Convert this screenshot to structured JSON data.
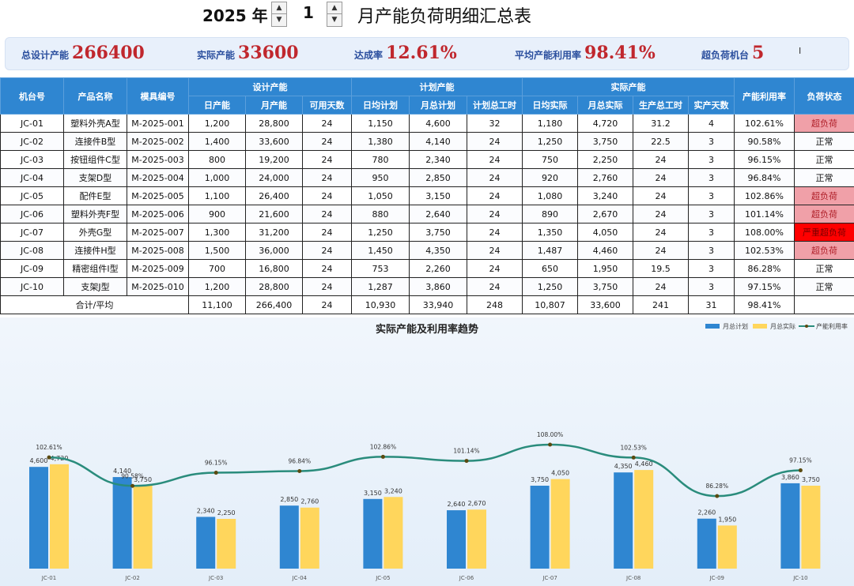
{
  "header": {
    "year": "2025 年",
    "month": "1",
    "title": "月产能负荷明细汇总表",
    "spin_up": "▲",
    "spin_down": "▼"
  },
  "kpis": [
    {
      "label": "总设计产能",
      "value": "266400"
    },
    {
      "label": "实际产能",
      "value": "33600"
    },
    {
      "label": "达成率",
      "value": "12.61%"
    },
    {
      "label": "平均产能利用率",
      "value": "98.41%"
    },
    {
      "label": "超负荷机台",
      "value": "5"
    }
  ],
  "cursor_glyph": "I",
  "table": {
    "group_headers": {
      "design": "设计产能",
      "plan": "计划产能",
      "actual": "实际产能"
    },
    "col_headers": {
      "machine": "机台号",
      "product": "产品名称",
      "mold": "模具编号",
      "day_cap": "日产能",
      "month_cap": "月产能",
      "days": "可用天数",
      "daily_plan": "日均计划",
      "month_plan": "月总计划",
      "plan_hours": "计划总工时",
      "daily_actual": "日均实际",
      "month_actual": "月总实际",
      "prod_hours": "生产总工时",
      "actual_days": "实产天数",
      "util": "产能利用率",
      "status": "负荷状态"
    },
    "rows": [
      [
        "JC-01",
        "塑料外壳A型",
        "M-2025-001",
        "1,200",
        "28,800",
        "24",
        "1,150",
        "4,600",
        "32",
        "1,180",
        "4,720",
        "31.2",
        "4",
        "102.61%",
        "超负荷"
      ],
      [
        "JC-02",
        "连接件B型",
        "M-2025-002",
        "1,400",
        "33,600",
        "24",
        "1,380",
        "4,140",
        "24",
        "1,250",
        "3,750",
        "22.5",
        "3",
        "90.58%",
        "正常"
      ],
      [
        "JC-03",
        "按钮组件C型",
        "M-2025-003",
        "800",
        "19,200",
        "24",
        "780",
        "2,340",
        "24",
        "750",
        "2,250",
        "24",
        "3",
        "96.15%",
        "正常"
      ],
      [
        "JC-04",
        "支架D型",
        "M-2025-004",
        "1,000",
        "24,000",
        "24",
        "950",
        "2,850",
        "24",
        "920",
        "2,760",
        "24",
        "3",
        "96.84%",
        "正常"
      ],
      [
        "JC-05",
        "配件E型",
        "M-2025-005",
        "1,100",
        "26,400",
        "24",
        "1,050",
        "3,150",
        "24",
        "1,080",
        "3,240",
        "24",
        "3",
        "102.86%",
        "超负荷"
      ],
      [
        "JC-06",
        "塑料外壳F型",
        "M-2025-006",
        "900",
        "21,600",
        "24",
        "880",
        "2,640",
        "24",
        "890",
        "2,670",
        "24",
        "3",
        "101.14%",
        "超负荷"
      ],
      [
        "JC-07",
        "外壳G型",
        "M-2025-007",
        "1,300",
        "31,200",
        "24",
        "1,250",
        "3,750",
        "24",
        "1,350",
        "4,050",
        "24",
        "3",
        "108.00%",
        "严重超负荷"
      ],
      [
        "JC-08",
        "连接件H型",
        "M-2025-008",
        "1,500",
        "36,000",
        "24",
        "1,450",
        "4,350",
        "24",
        "1,487",
        "4,460",
        "24",
        "3",
        "102.53%",
        "超负荷"
      ],
      [
        "JC-09",
        "精密组件I型",
        "M-2025-009",
        "700",
        "16,800",
        "24",
        "753",
        "2,260",
        "24",
        "650",
        "1,950",
        "19.5",
        "3",
        "86.28%",
        "正常"
      ],
      [
        "JC-10",
        "支架J型",
        "M-2025-010",
        "1,200",
        "28,800",
        "24",
        "1,287",
        "3,860",
        "24",
        "1,250",
        "3,750",
        "24",
        "3",
        "97.15%",
        "正常"
      ]
    ],
    "total": {
      "label": "合计/平均",
      "values": [
        "11,100",
        "266,400",
        "24",
        "10,930",
        "33,940",
        "248",
        "10,807",
        "33,600",
        "241",
        "31",
        "98.41%"
      ]
    }
  },
  "colors": {
    "plan": "#2f86d1",
    "actual": "#ffd65c",
    "line": "#2a8c7c",
    "marker": "#5a4a10"
  },
  "chart_data": {
    "type": "bar",
    "title": "实际产能及利用率趋势",
    "categories": [
      "JC-01",
      "JC-02",
      "JC-03",
      "JC-04",
      "JC-05",
      "JC-06",
      "JC-07",
      "JC-08",
      "JC-09",
      "JC-10"
    ],
    "series": [
      {
        "name": "月总计划",
        "values": [
          4600,
          4140,
          2340,
          2850,
          3150,
          2640,
          3750,
          4350,
          2260,
          3860
        ],
        "labels": [
          "4,600",
          "4,140",
          "2,340",
          "2,850",
          "3,150",
          "2,640",
          "3,750",
          "4,350",
          "2,260",
          "3,860"
        ]
      },
      {
        "name": "月总实际",
        "values": [
          4720,
          3750,
          2250,
          2760,
          3240,
          2670,
          4050,
          4460,
          1950,
          3750
        ],
        "labels": [
          "4,720",
          "3,750",
          "2,250",
          "2,760",
          "3,240",
          "2,670",
          "4,050",
          "4,460",
          "1,950",
          "3,750"
        ]
      }
    ],
    "line_series": {
      "name": "产能利用率",
      "values": [
        102.61,
        90.58,
        96.15,
        96.84,
        102.86,
        101.14,
        108.0,
        102.53,
        86.28,
        97.15
      ],
      "labels": [
        "102.61%",
        "90.58%",
        "96.15%",
        "96.84%",
        "102.86%",
        "101.14%",
        "108.00%",
        "102.53%",
        "86.28%",
        "97.15%"
      ]
    },
    "ylim": [
      0,
      9000
    ],
    "line_ylim": [
      70,
      115
    ],
    "legend": "top-right"
  }
}
